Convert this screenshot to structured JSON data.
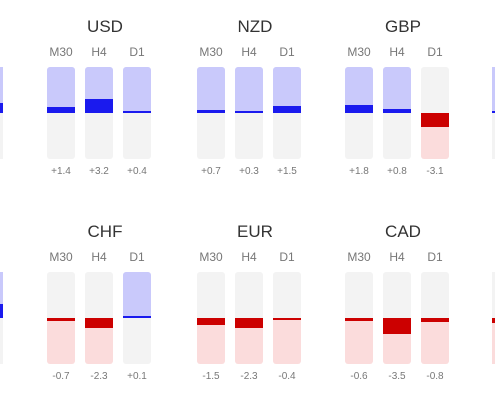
{
  "colors": {
    "pos_light": "#c9c9fb",
    "pos_strong": "#1a1aee",
    "neg_light": "#fbdcdc",
    "neg_strong": "#cc0000",
    "neutral": "#f3f3f3"
  },
  "scale_max": 4,
  "panels": [
    {
      "currency": "USD",
      "bars": [
        {
          "tf": "M30",
          "value_label": "+1.4",
          "value": 1.4
        },
        {
          "tf": "H4",
          "value_label": "+3.2",
          "value": 3.2
        },
        {
          "tf": "D1",
          "value_label": "+0.4",
          "value": 0.4
        }
      ]
    },
    {
      "currency": "NZD",
      "bars": [
        {
          "tf": "M30",
          "value_label": "+0.7",
          "value": 0.7
        },
        {
          "tf": "H4",
          "value_label": "+0.3",
          "value": 0.3
        },
        {
          "tf": "D1",
          "value_label": "+1.5",
          "value": 1.5
        }
      ]
    },
    {
      "currency": "GBP",
      "bars": [
        {
          "tf": "M30",
          "value_label": "+1.8",
          "value": 1.8
        },
        {
          "tf": "H4",
          "value_label": "+0.8",
          "value": 0.8
        },
        {
          "tf": "D1",
          "value_label": "-3.1",
          "value": -3.1
        }
      ]
    },
    {
      "currency": "CHF",
      "bars": [
        {
          "tf": "M30",
          "value_label": "-0.7",
          "value": -0.7
        },
        {
          "tf": "H4",
          "value_label": "-2.3",
          "value": -2.3
        },
        {
          "tf": "D1",
          "value_label": "+0.1",
          "value": 0.1
        }
      ]
    },
    {
      "currency": "EUR",
      "bars": [
        {
          "tf": "M30",
          "value_label": "-1.5",
          "value": -1.5
        },
        {
          "tf": "H4",
          "value_label": "-2.3",
          "value": -2.3
        },
        {
          "tf": "D1",
          "value_label": "-0.4",
          "value": -0.4
        }
      ]
    },
    {
      "currency": "CAD",
      "bars": [
        {
          "tf": "M30",
          "value_label": "-0.6",
          "value": -0.6
        },
        {
          "tf": "H4",
          "value_label": "-3.5",
          "value": -3.5
        },
        {
          "tf": "D1",
          "value_label": "-0.8",
          "value": -0.8
        }
      ]
    }
  ],
  "edge_bars": [
    {
      "value": 2.2
    },
    {
      "value": 0.3
    },
    {
      "value": 3.0
    },
    {
      "value": -1.0
    }
  ]
}
